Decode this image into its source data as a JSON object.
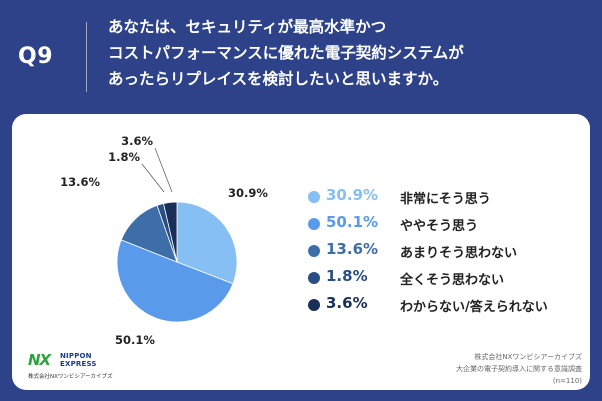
{
  "header": {
    "question_number": "Q9",
    "question_lines": [
      "あなたは、セキュリティが最高水準かつ",
      "コストパフォーマンスに優れた電子契約システムが",
      "あったらリプレイスを検討したいと思いますか。"
    ]
  },
  "chart_data": {
    "type": "pie",
    "title": "あなたは、セキュリティが最高水準かつコストパフォーマンスに優れた電子契約システムがあったらリプレイスを検討したいと思いますか。",
    "categories": [
      "非常にそう思う",
      "ややそう思う",
      "あまりそう思わない",
      "全くそう思わない",
      "わからない/答えられない"
    ],
    "values": [
      30.9,
      50.1,
      13.6,
      1.8,
      3.6
    ],
    "value_labels": [
      "30.9%",
      "50.1%",
      "13.6%",
      "1.8%",
      "3.6%"
    ],
    "colors": [
      "#85bff3",
      "#5a9aeb",
      "#3d6ea8",
      "#2a4d86",
      "#1a2f57"
    ],
    "legend_position": "right",
    "sample_size": "(n=110)"
  },
  "footer": {
    "logo_mark": "NX",
    "logo_word_1": "NIPPON",
    "logo_word_2": "EXPRESS",
    "logo_company": "株式会社NXワンビシアーカイブズ",
    "source_lines": [
      "株式会社NXワンビシアーカイブズ",
      "大企業の電子契約導入に関する意識調査",
      "(n=110)"
    ]
  }
}
